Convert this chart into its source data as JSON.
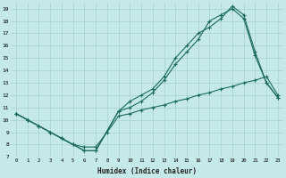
{
  "xlabel": "Humidex (Indice chaleur)",
  "ylabel": "",
  "background_color": "#c5e8e8",
  "grid_color": "#a8d0d0",
  "line_color": "#1a6b5a",
  "xlim": [
    -0.5,
    23.5
  ],
  "ylim": [
    7,
    19.5
  ],
  "xticks": [
    0,
    1,
    2,
    3,
    4,
    5,
    6,
    7,
    8,
    9,
    10,
    11,
    12,
    13,
    14,
    15,
    16,
    17,
    18,
    19,
    20,
    21,
    22,
    23
  ],
  "yticks": [
    7,
    8,
    9,
    10,
    11,
    12,
    13,
    14,
    15,
    16,
    17,
    18,
    19
  ],
  "line1_x": [
    0,
    1,
    2,
    3,
    4,
    5,
    6,
    7,
    9,
    10,
    11,
    12,
    13,
    14,
    15,
    16,
    17,
    18,
    19,
    20,
    21,
    22,
    23
  ],
  "line1_y": [
    10.5,
    10.0,
    9.5,
    9.0,
    8.5,
    8.0,
    7.5,
    7.5,
    10.7,
    11.0,
    11.5,
    12.2,
    13.2,
    14.5,
    15.5,
    16.5,
    18.0,
    18.5,
    19.0,
    18.2,
    15.2,
    13.0,
    11.8
  ],
  "line2_x": [
    0,
    1,
    2,
    3,
    4,
    5,
    6,
    7,
    9,
    10,
    11,
    12,
    13,
    14,
    15,
    16,
    17,
    18,
    19,
    20,
    21,
    22,
    23
  ],
  "line2_y": [
    10.5,
    10.0,
    9.5,
    9.0,
    8.5,
    8.0,
    7.5,
    7.5,
    10.7,
    11.5,
    12.0,
    12.5,
    13.5,
    15.0,
    16.0,
    17.0,
    17.5,
    18.2,
    19.2,
    18.5,
    15.5,
    13.0,
    11.8
  ],
  "line3_x": [
    0,
    1,
    2,
    3,
    4,
    5,
    6,
    7,
    8,
    9,
    10,
    11,
    12,
    13,
    14,
    15,
    16,
    17,
    18,
    19,
    20,
    21,
    22,
    23
  ],
  "line3_y": [
    10.5,
    10.0,
    9.5,
    9.0,
    8.5,
    8.0,
    7.8,
    7.8,
    9.0,
    10.3,
    10.5,
    10.8,
    11.0,
    11.2,
    11.5,
    11.7,
    12.0,
    12.2,
    12.5,
    12.7,
    13.0,
    13.2,
    13.5,
    12.0
  ]
}
